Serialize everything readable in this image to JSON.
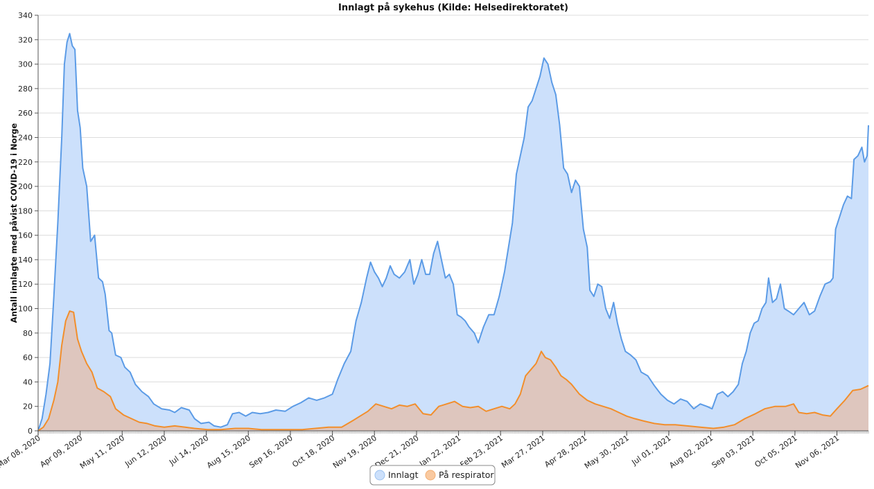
{
  "chart_data": {
    "type": "area",
    "title": "Innlagt på sykehus (Kilde: Helsedirektoratet)",
    "ylabel": "Antall innlagte med påvist COVID-19 i Norge",
    "xlabel": "",
    "x_start": "2020-03-08",
    "x_end": "2021-11-30",
    "x_tick_labels": [
      "Mar 08, 2020",
      "Apr 09, 2020",
      "May 11, 2020",
      "Jun 12, 2020",
      "Jul 14, 2020",
      "Aug 15, 2020",
      "Sep 16, 2020",
      "Oct 18, 2020",
      "Nov 19, 2020",
      "Dec 21, 2020",
      "Jan 22, 2021",
      "Feb 23, 2021",
      "Mar 27, 2021",
      "Apr 28, 2021",
      "May 30, 2021",
      "Jul 01, 2021",
      "Aug 02, 2021",
      "Sep 03, 2021",
      "Oct 05, 2021",
      "Nov 06, 2021"
    ],
    "ylim": [
      0,
      340
    ],
    "y_ticks": [
      0,
      20,
      40,
      60,
      80,
      100,
      120,
      140,
      160,
      180,
      200,
      220,
      240,
      260,
      280,
      300,
      320,
      340
    ],
    "grid": true,
    "legend_position": "bottom",
    "series": [
      {
        "name": "Innlagt",
        "color": "#5b9be6",
        "fill": "#cce0fb",
        "points": [
          [
            "2020-03-08",
            0
          ],
          [
            "2020-03-11",
            10
          ],
          [
            "2020-03-14",
            30
          ],
          [
            "2020-03-17",
            55
          ],
          [
            "2020-03-20",
            110
          ],
          [
            "2020-03-23",
            170
          ],
          [
            "2020-03-26",
            240
          ],
          [
            "2020-03-28",
            300
          ],
          [
            "2020-03-30",
            318
          ],
          [
            "2020-04-01",
            325
          ],
          [
            "2020-04-03",
            315
          ],
          [
            "2020-04-05",
            312
          ],
          [
            "2020-04-07",
            262
          ],
          [
            "2020-04-09",
            248
          ],
          [
            "2020-04-11",
            215
          ],
          [
            "2020-04-14",
            200
          ],
          [
            "2020-04-17",
            155
          ],
          [
            "2020-04-20",
            160
          ],
          [
            "2020-04-23",
            125
          ],
          [
            "2020-04-26",
            122
          ],
          [
            "2020-04-28",
            112
          ],
          [
            "2020-05-01",
            82
          ],
          [
            "2020-05-03",
            80
          ],
          [
            "2020-05-06",
            62
          ],
          [
            "2020-05-10",
            60
          ],
          [
            "2020-05-13",
            52
          ],
          [
            "2020-05-17",
            48
          ],
          [
            "2020-05-21",
            38
          ],
          [
            "2020-05-26",
            32
          ],
          [
            "2020-05-31",
            28
          ],
          [
            "2020-06-04",
            22
          ],
          [
            "2020-06-10",
            18
          ],
          [
            "2020-06-16",
            17
          ],
          [
            "2020-06-20",
            15
          ],
          [
            "2020-06-25",
            19
          ],
          [
            "2020-07-01",
            17
          ],
          [
            "2020-07-05",
            10
          ],
          [
            "2020-07-10",
            6
          ],
          [
            "2020-07-16",
            7
          ],
          [
            "2020-07-20",
            4
          ],
          [
            "2020-07-25",
            3
          ],
          [
            "2020-07-30",
            5
          ],
          [
            "2020-08-03",
            14
          ],
          [
            "2020-08-08",
            15
          ],
          [
            "2020-08-13",
            12
          ],
          [
            "2020-08-18",
            15
          ],
          [
            "2020-08-24",
            14
          ],
          [
            "2020-08-30",
            15
          ],
          [
            "2020-09-05",
            17
          ],
          [
            "2020-09-12",
            16
          ],
          [
            "2020-09-18",
            20
          ],
          [
            "2020-09-24",
            23
          ],
          [
            "2020-09-30",
            27
          ],
          [
            "2020-10-06",
            25
          ],
          [
            "2020-10-12",
            27
          ],
          [
            "2020-10-18",
            30
          ],
          [
            "2020-10-22",
            42
          ],
          [
            "2020-10-27",
            55
          ],
          [
            "2020-11-01",
            65
          ],
          [
            "2020-11-05",
            90
          ],
          [
            "2020-11-09",
            105
          ],
          [
            "2020-11-13",
            125
          ],
          [
            "2020-11-16",
            138
          ],
          [
            "2020-11-19",
            130
          ],
          [
            "2020-11-22",
            125
          ],
          [
            "2020-11-25",
            118
          ],
          [
            "2020-11-28",
            125
          ],
          [
            "2020-12-01",
            135
          ],
          [
            "2020-12-04",
            128
          ],
          [
            "2020-12-08",
            125
          ],
          [
            "2020-12-12",
            130
          ],
          [
            "2020-12-16",
            140
          ],
          [
            "2020-12-19",
            120
          ],
          [
            "2020-12-22",
            128
          ],
          [
            "2020-12-25",
            140
          ],
          [
            "2020-12-28",
            128
          ],
          [
            "2020-12-31",
            128
          ],
          [
            "2021-01-03",
            145
          ],
          [
            "2021-01-06",
            155
          ],
          [
            "2021-01-09",
            140
          ],
          [
            "2021-01-12",
            125
          ],
          [
            "2021-01-15",
            128
          ],
          [
            "2021-01-18",
            120
          ],
          [
            "2021-01-21",
            95
          ],
          [
            "2021-01-24",
            93
          ],
          [
            "2021-01-27",
            90
          ],
          [
            "2021-01-30",
            85
          ],
          [
            "2021-02-03",
            80
          ],
          [
            "2021-02-06",
            72
          ],
          [
            "2021-02-10",
            85
          ],
          [
            "2021-02-14",
            95
          ],
          [
            "2021-02-18",
            95
          ],
          [
            "2021-02-22",
            110
          ],
          [
            "2021-02-26",
            130
          ],
          [
            "2021-03-01",
            150
          ],
          [
            "2021-03-04",
            170
          ],
          [
            "2021-03-07",
            210
          ],
          [
            "2021-03-10",
            225
          ],
          [
            "2021-03-13",
            240
          ],
          [
            "2021-03-16",
            265
          ],
          [
            "2021-03-19",
            270
          ],
          [
            "2021-03-22",
            280
          ],
          [
            "2021-03-25",
            290
          ],
          [
            "2021-03-28",
            305
          ],
          [
            "2021-03-31",
            300
          ],
          [
            "2021-04-03",
            285
          ],
          [
            "2021-04-06",
            275
          ],
          [
            "2021-04-09",
            250
          ],
          [
            "2021-04-12",
            215
          ],
          [
            "2021-04-15",
            210
          ],
          [
            "2021-04-18",
            195
          ],
          [
            "2021-04-21",
            205
          ],
          [
            "2021-04-24",
            200
          ],
          [
            "2021-04-27",
            165
          ],
          [
            "2021-04-30",
            150
          ],
          [
            "2021-05-02",
            115
          ],
          [
            "2021-05-05",
            110
          ],
          [
            "2021-05-08",
            120
          ],
          [
            "2021-05-11",
            118
          ],
          [
            "2021-05-14",
            100
          ],
          [
            "2021-05-17",
            92
          ],
          [
            "2021-05-20",
            105
          ],
          [
            "2021-05-23",
            88
          ],
          [
            "2021-05-26",
            75
          ],
          [
            "2021-05-29",
            65
          ],
          [
            "2021-06-02",
            62
          ],
          [
            "2021-06-06",
            58
          ],
          [
            "2021-06-10",
            48
          ],
          [
            "2021-06-15",
            45
          ],
          [
            "2021-06-20",
            37
          ],
          [
            "2021-06-25",
            30
          ],
          [
            "2021-06-30",
            25
          ],
          [
            "2021-07-05",
            22
          ],
          [
            "2021-07-10",
            26
          ],
          [
            "2021-07-15",
            24
          ],
          [
            "2021-07-20",
            18
          ],
          [
            "2021-07-25",
            22
          ],
          [
            "2021-07-30",
            20
          ],
          [
            "2021-08-03",
            18
          ],
          [
            "2021-08-07",
            30
          ],
          [
            "2021-08-11",
            32
          ],
          [
            "2021-08-15",
            28
          ],
          [
            "2021-08-19",
            32
          ],
          [
            "2021-08-23",
            38
          ],
          [
            "2021-08-26",
            55
          ],
          [
            "2021-08-29",
            65
          ],
          [
            "2021-09-01",
            80
          ],
          [
            "2021-09-04",
            88
          ],
          [
            "2021-09-07",
            90
          ],
          [
            "2021-09-10",
            100
          ],
          [
            "2021-09-13",
            105
          ],
          [
            "2021-09-15",
            125
          ],
          [
            "2021-09-18",
            105
          ],
          [
            "2021-09-21",
            108
          ],
          [
            "2021-09-24",
            120
          ],
          [
            "2021-09-27",
            100
          ],
          [
            "2021-09-30",
            98
          ],
          [
            "2021-10-04",
            95
          ],
          [
            "2021-10-08",
            100
          ],
          [
            "2021-10-12",
            105
          ],
          [
            "2021-10-16",
            95
          ],
          [
            "2021-10-20",
            98
          ],
          [
            "2021-10-24",
            110
          ],
          [
            "2021-10-28",
            120
          ],
          [
            "2021-11-01",
            122
          ],
          [
            "2021-11-03",
            125
          ],
          [
            "2021-11-05",
            165
          ],
          [
            "2021-11-08",
            175
          ],
          [
            "2021-11-11",
            185
          ],
          [
            "2021-11-14",
            192
          ],
          [
            "2021-11-17",
            190
          ],
          [
            "2021-11-19",
            222
          ],
          [
            "2021-11-22",
            225
          ],
          [
            "2021-11-25",
            232
          ],
          [
            "2021-11-27",
            220
          ],
          [
            "2021-11-29",
            225
          ],
          [
            "2021-11-30",
            250
          ]
        ]
      },
      {
        "name": "På respirator",
        "color": "#f28e2b",
        "fill": "#dec4ba",
        "points": [
          [
            "2020-03-08",
            0
          ],
          [
            "2020-03-12",
            3
          ],
          [
            "2020-03-16",
            10
          ],
          [
            "2020-03-20",
            25
          ],
          [
            "2020-03-23",
            40
          ],
          [
            "2020-03-26",
            70
          ],
          [
            "2020-03-29",
            90
          ],
          [
            "2020-04-01",
            98
          ],
          [
            "2020-04-04",
            97
          ],
          [
            "2020-04-07",
            75
          ],
          [
            "2020-04-10",
            65
          ],
          [
            "2020-04-14",
            55
          ],
          [
            "2020-04-18",
            48
          ],
          [
            "2020-04-22",
            35
          ],
          [
            "2020-04-27",
            32
          ],
          [
            "2020-05-02",
            28
          ],
          [
            "2020-05-06",
            18
          ],
          [
            "2020-05-12",
            13
          ],
          [
            "2020-05-18",
            10
          ],
          [
            "2020-05-24",
            7
          ],
          [
            "2020-05-30",
            6
          ],
          [
            "2020-06-05",
            4
          ],
          [
            "2020-06-12",
            3
          ],
          [
            "2020-06-20",
            4
          ],
          [
            "2020-06-28",
            3
          ],
          [
            "2020-07-05",
            2
          ],
          [
            "2020-07-15",
            1
          ],
          [
            "2020-07-25",
            1
          ],
          [
            "2020-08-05",
            2
          ],
          [
            "2020-08-15",
            2
          ],
          [
            "2020-08-25",
            1
          ],
          [
            "2020-09-05",
            1
          ],
          [
            "2020-09-15",
            1
          ],
          [
            "2020-09-25",
            1
          ],
          [
            "2020-10-05",
            2
          ],
          [
            "2020-10-15",
            3
          ],
          [
            "2020-10-25",
            3
          ],
          [
            "2020-11-02",
            8
          ],
          [
            "2020-11-08",
            12
          ],
          [
            "2020-11-14",
            16
          ],
          [
            "2020-11-20",
            22
          ],
          [
            "2020-11-26",
            20
          ],
          [
            "2020-12-02",
            18
          ],
          [
            "2020-12-08",
            21
          ],
          [
            "2020-12-14",
            20
          ],
          [
            "2020-12-20",
            22
          ],
          [
            "2020-12-26",
            14
          ],
          [
            "2021-01-01",
            13
          ],
          [
            "2021-01-07",
            20
          ],
          [
            "2021-01-13",
            22
          ],
          [
            "2021-01-19",
            24
          ],
          [
            "2021-01-25",
            20
          ],
          [
            "2021-01-31",
            19
          ],
          [
            "2021-02-06",
            20
          ],
          [
            "2021-02-12",
            16
          ],
          [
            "2021-02-18",
            18
          ],
          [
            "2021-02-24",
            20
          ],
          [
            "2021-03-02",
            18
          ],
          [
            "2021-03-06",
            22
          ],
          [
            "2021-03-10",
            30
          ],
          [
            "2021-03-14",
            45
          ],
          [
            "2021-03-18",
            50
          ],
          [
            "2021-03-22",
            55
          ],
          [
            "2021-03-26",
            65
          ],
          [
            "2021-03-29",
            60
          ],
          [
            "2021-04-02",
            58
          ],
          [
            "2021-04-06",
            52
          ],
          [
            "2021-04-10",
            45
          ],
          [
            "2021-04-14",
            42
          ],
          [
            "2021-04-18",
            38
          ],
          [
            "2021-04-24",
            30
          ],
          [
            "2021-04-30",
            25
          ],
          [
            "2021-05-06",
            22
          ],
          [
            "2021-05-12",
            20
          ],
          [
            "2021-05-18",
            18
          ],
          [
            "2021-05-24",
            15
          ],
          [
            "2021-05-30",
            12
          ],
          [
            "2021-06-05",
            10
          ],
          [
            "2021-06-12",
            8
          ],
          [
            "2021-06-20",
            6
          ],
          [
            "2021-06-28",
            5
          ],
          [
            "2021-07-06",
            5
          ],
          [
            "2021-07-15",
            4
          ],
          [
            "2021-07-25",
            3
          ],
          [
            "2021-08-04",
            2
          ],
          [
            "2021-08-12",
            3
          ],
          [
            "2021-08-20",
            5
          ],
          [
            "2021-08-28",
            10
          ],
          [
            "2021-09-05",
            14
          ],
          [
            "2021-09-12",
            18
          ],
          [
            "2021-09-20",
            20
          ],
          [
            "2021-09-28",
            20
          ],
          [
            "2021-10-04",
            22
          ],
          [
            "2021-10-08",
            15
          ],
          [
            "2021-10-14",
            14
          ],
          [
            "2021-10-20",
            15
          ],
          [
            "2021-10-26",
            13
          ],
          [
            "2021-11-01",
            12
          ],
          [
            "2021-11-06",
            18
          ],
          [
            "2021-11-12",
            25
          ],
          [
            "2021-11-18",
            33
          ],
          [
            "2021-11-24",
            34
          ],
          [
            "2021-11-30",
            37
          ]
        ]
      }
    ]
  }
}
